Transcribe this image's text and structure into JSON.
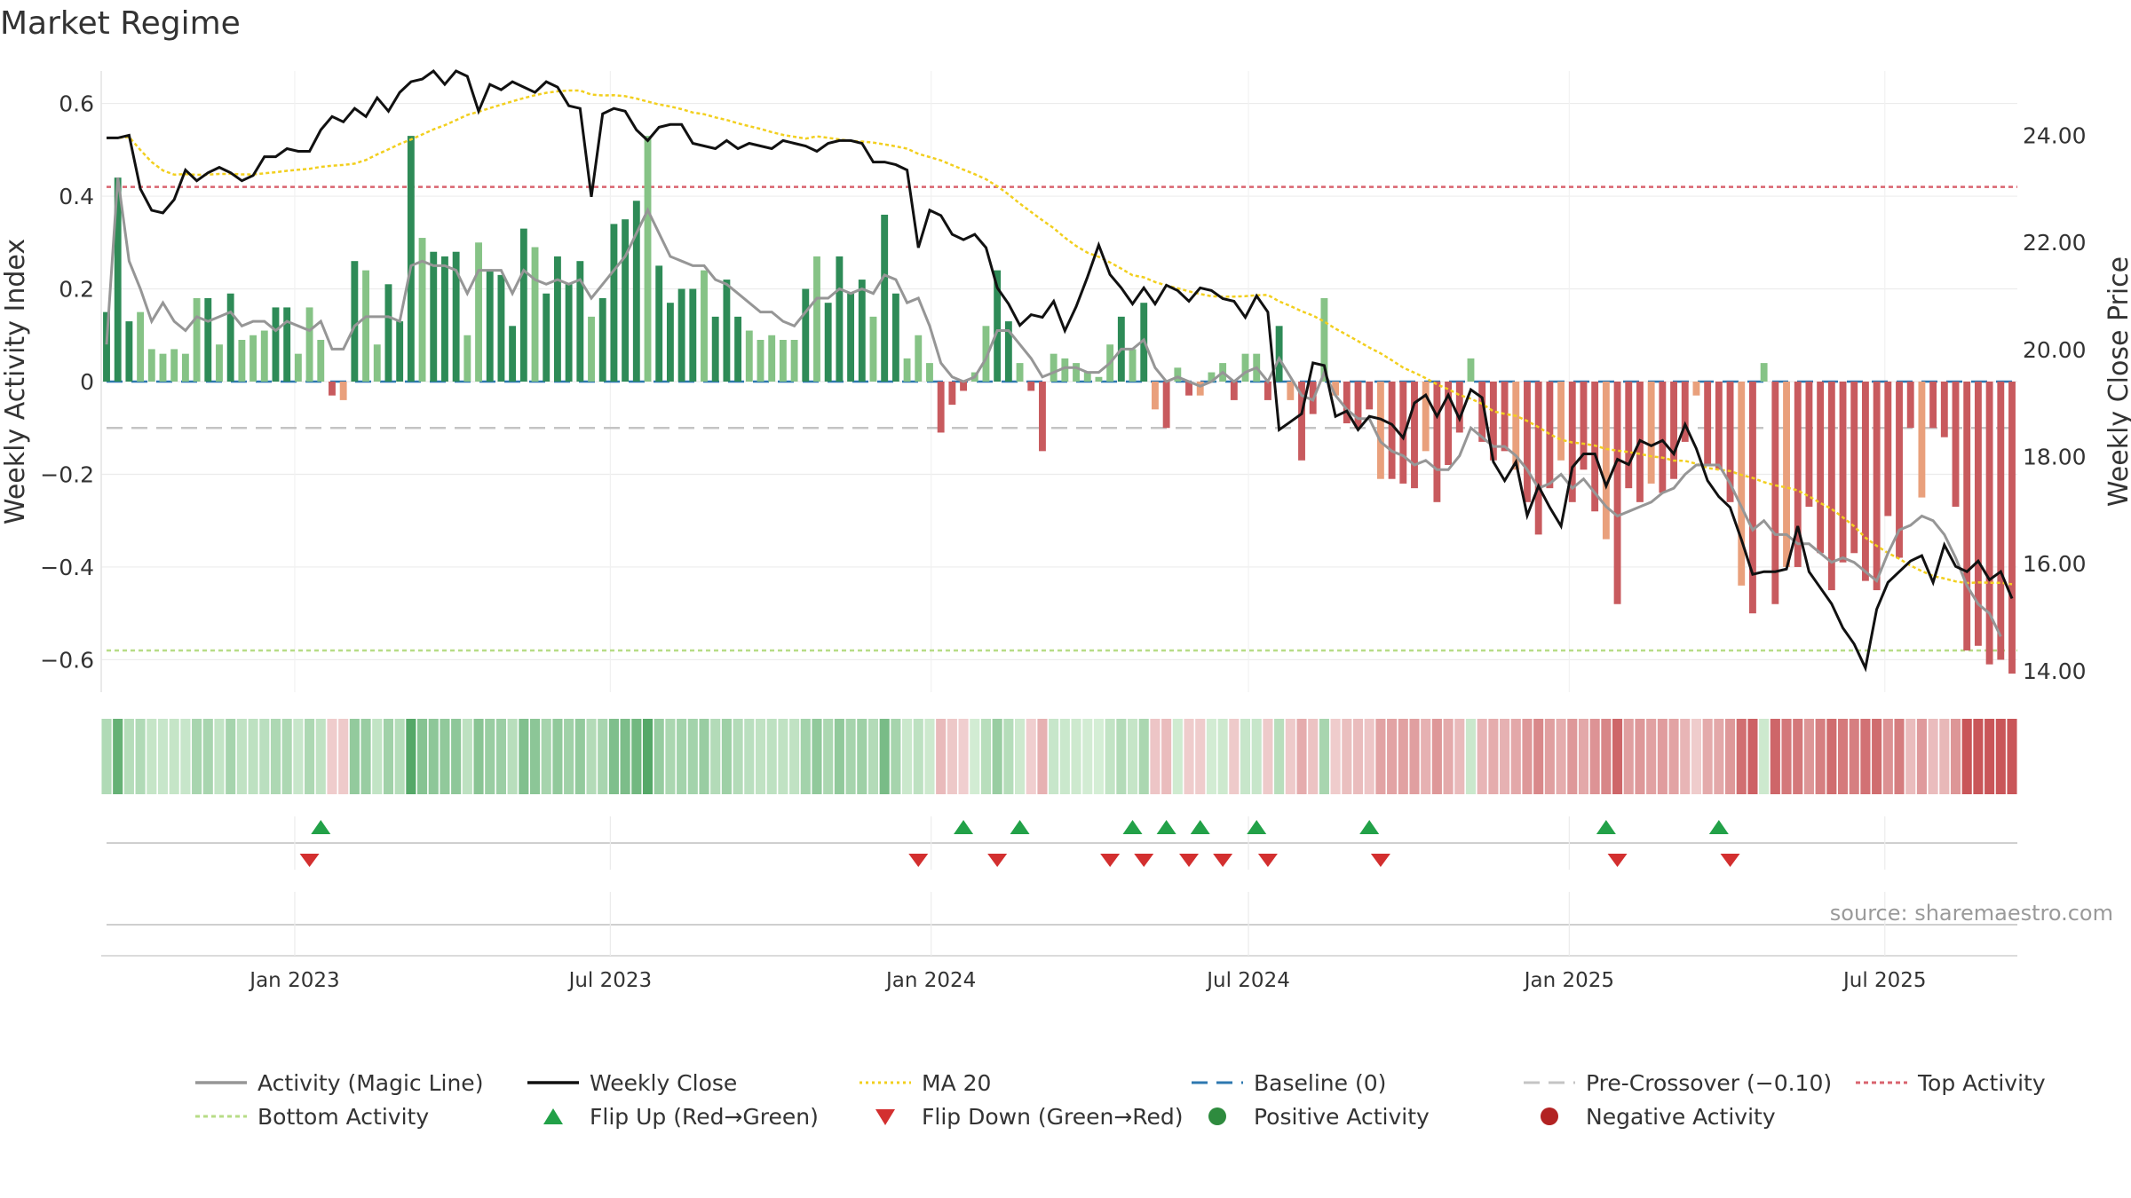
{
  "title": "Market Regime",
  "source": "source: sharemaestro.com",
  "colors": {
    "activity_line": "#969696",
    "weekly_close": "#111111",
    "ma20": "#f2cf1e",
    "baseline": "#2e78b0",
    "pre_crossover": "#c4c4c4",
    "top_activity": "#d9646f",
    "bottom_activity": "#b7dc86",
    "pos_dark": "#2e8b57",
    "pos_light": "#86c386",
    "neg_dark": "#c85a5e",
    "neg_light": "#e9a07c",
    "flip_up": "#22a148",
    "flip_down": "#d32f2f"
  },
  "chart_data": {
    "type": "bar+line",
    "title": "Market Regime",
    "ylabel_left": "Weekly Activity Index",
    "ylabel_right": "Weekly Close Price",
    "yticks_left": [
      "0.6",
      "0.4",
      "0.2",
      "0",
      "−0.2",
      "−0.4",
      "−0.6"
    ],
    "ylim_left": [
      -0.67,
      0.67
    ],
    "yticks_right": [
      "24.00",
      "22.00",
      "20.00",
      "18.00",
      "16.00",
      "14.00"
    ],
    "ylim_right": [
      13.6,
      25.2
    ],
    "x_start": "2022-09-12",
    "x_end": "2025-09-15",
    "xtick_labels": [
      {
        "date": "2023-01-01",
        "label": "Jan 2023"
      },
      {
        "date": "2023-07-01",
        "label": "Jul 2023"
      },
      {
        "date": "2024-01-01",
        "label": "Jan 2024"
      },
      {
        "date": "2024-07-01",
        "label": "Jul 2024"
      },
      {
        "date": "2025-01-01",
        "label": "Jan 2025"
      },
      {
        "date": "2025-07-01",
        "label": "Jul 2025"
      }
    ],
    "reference_lines": {
      "top_activity": 0.42,
      "bottom_activity": -0.58,
      "pre_crossover": -0.1,
      "baseline": 0
    },
    "activity_bars": [
      0.15,
      0.44,
      0.13,
      0.15,
      0.07,
      0.06,
      0.07,
      0.06,
      0.18,
      0.18,
      0.08,
      0.19,
      0.09,
      0.1,
      0.11,
      0.16,
      0.16,
      0.06,
      0.16,
      0.09,
      -0.03,
      -0.04,
      0.26,
      0.24,
      0.08,
      0.21,
      0.13,
      0.53,
      0.31,
      0.28,
      0.27,
      0.28,
      0.1,
      0.3,
      0.24,
      0.23,
      0.12,
      0.33,
      0.29,
      0.19,
      0.27,
      0.21,
      0.26,
      0.14,
      0.18,
      0.34,
      0.35,
      0.39,
      0.53,
      0.25,
      0.17,
      0.2,
      0.2,
      0.24,
      0.14,
      0.22,
      0.14,
      0.11,
      0.09,
      0.1,
      0.09,
      0.09,
      0.2,
      0.27,
      0.17,
      0.27,
      0.19,
      0.22,
      0.14,
      0.36,
      0.19,
      0.05,
      0.1,
      0.04,
      -0.11,
      -0.05,
      -0.02,
      0.02,
      0.12,
      0.24,
      0.13,
      0.04,
      -0.02,
      -0.15,
      0.06,
      0.05,
      0.04,
      0.02,
      0.01,
      0.08,
      0.14,
      0.07,
      0.17,
      -0.06,
      -0.1,
      0.03,
      -0.03,
      -0.03,
      0.02,
      0.04,
      -0.04,
      0.06,
      0.06,
      -0.04,
      0.12,
      -0.04,
      -0.17,
      -0.07,
      0.18,
      -0.03,
      -0.09,
      -0.1,
      -0.06,
      -0.21,
      -0.21,
      -0.22,
      -0.23,
      -0.15,
      -0.26,
      -0.18,
      -0.11,
      0.05,
      -0.13,
      -0.17,
      -0.15,
      -0.19,
      -0.26,
      -0.33,
      -0.23,
      -0.17,
      -0.26,
      -0.19,
      -0.28,
      -0.34,
      -0.48,
      -0.23,
      -0.26,
      -0.22,
      -0.24,
      -0.21,
      -0.13,
      -0.03,
      -0.18,
      -0.19,
      -0.26,
      -0.44,
      -0.5,
      0.04,
      -0.48,
      -0.4,
      -0.4,
      -0.27,
      -0.37,
      -0.45,
      -0.39,
      -0.37,
      -0.43,
      -0.45,
      -0.29,
      -0.38,
      -0.1,
      -0.25,
      -0.1,
      -0.12,
      -0.27,
      -0.58,
      -0.57,
      -0.61,
      -0.6,
      -0.63
    ],
    "activity_line": [
      0.08,
      0.44,
      0.26,
      0.2,
      0.13,
      0.17,
      0.13,
      0.11,
      0.14,
      0.13,
      0.14,
      0.15,
      0.12,
      0.13,
      0.13,
      0.11,
      0.13,
      0.12,
      0.11,
      0.13,
      0.07,
      0.07,
      0.12,
      0.14,
      0.14,
      0.14,
      0.13,
      0.25,
      0.26,
      0.25,
      0.25,
      0.24,
      0.19,
      0.24,
      0.24,
      0.24,
      0.19,
      0.24,
      0.22,
      0.21,
      0.22,
      0.21,
      0.22,
      0.18,
      0.21,
      0.24,
      0.27,
      0.32,
      0.37,
      0.32,
      0.27,
      0.26,
      0.25,
      0.25,
      0.22,
      0.21,
      0.19,
      0.17,
      0.15,
      0.15,
      0.13,
      0.12,
      0.15,
      0.18,
      0.18,
      0.2,
      0.19,
      0.2,
      0.19,
      0.23,
      0.22,
      0.17,
      0.18,
      0.12,
      0.04,
      0.01,
      0.0,
      0.01,
      0.05,
      0.11,
      0.11,
      0.08,
      0.05,
      0.01,
      0.02,
      0.03,
      0.03,
      0.02,
      0.02,
      0.04,
      0.07,
      0.07,
      0.09,
      0.03,
      0.0,
      0.01,
      0.0,
      -0.01,
      0.0,
      0.02,
      0.0,
      0.02,
      0.03,
      0.0,
      0.05,
      0.01,
      -0.03,
      -0.04,
      0.02,
      -0.03,
      -0.06,
      -0.08,
      -0.08,
      -0.13,
      -0.15,
      -0.16,
      -0.18,
      -0.17,
      -0.19,
      -0.19,
      -0.16,
      -0.1,
      -0.12,
      -0.14,
      -0.14,
      -0.16,
      -0.19,
      -0.23,
      -0.22,
      -0.2,
      -0.23,
      -0.21,
      -0.24,
      -0.27,
      -0.29,
      -0.28,
      -0.27,
      -0.26,
      -0.24,
      -0.23,
      -0.2,
      -0.18,
      -0.18,
      -0.18,
      -0.22,
      -0.27,
      -0.32,
      -0.3,
      -0.33,
      -0.33,
      -0.35,
      -0.35,
      -0.37,
      -0.39,
      -0.38,
      -0.39,
      -0.41,
      -0.43,
      -0.37,
      -0.32,
      -0.31,
      -0.29,
      -0.3,
      -0.33,
      -0.38,
      -0.44,
      -0.48,
      -0.5,
      -0.55
    ],
    "weekly_close": [
      23.95,
      23.95,
      24.0,
      23.0,
      22.6,
      22.55,
      22.8,
      23.35,
      23.15,
      23.3,
      23.4,
      23.3,
      23.15,
      23.25,
      23.6,
      23.6,
      23.75,
      23.7,
      23.7,
      24.1,
      24.35,
      24.25,
      24.5,
      24.35,
      24.7,
      24.45,
      24.8,
      25.0,
      25.05,
      25.2,
      24.95,
      25.2,
      25.1,
      24.45,
      24.95,
      24.85,
      25.0,
      24.9,
      24.8,
      25.0,
      24.9,
      24.55,
      24.5,
      22.85,
      24.4,
      24.5,
      24.45,
      24.1,
      23.9,
      24.15,
      24.2,
      24.2,
      23.85,
      23.8,
      23.75,
      23.9,
      23.75,
      23.85,
      23.8,
      23.75,
      23.9,
      23.85,
      23.8,
      23.7,
      23.85,
      23.9,
      23.9,
      23.85,
      23.5,
      23.5,
      23.45,
      23.35,
      21.9,
      22.6,
      22.5,
      22.15,
      22.05,
      22.15,
      21.9,
      21.15,
      20.85,
      20.45,
      20.65,
      20.6,
      20.9,
      20.35,
      20.8,
      21.35,
      21.95,
      21.4,
      21.15,
      20.85,
      21.15,
      20.85,
      21.2,
      21.1,
      20.9,
      21.15,
      21.1,
      20.95,
      20.9,
      20.6,
      21.0,
      20.7,
      18.5,
      18.65,
      18.8,
      19.75,
      19.7,
      18.75,
      18.85,
      18.5,
      18.75,
      18.7,
      18.6,
      18.35,
      19.0,
      19.15,
      18.75,
      19.15,
      18.7,
      19.25,
      19.1,
      17.9,
      17.55,
      17.9,
      16.9,
      17.45,
      17.05,
      16.7,
      17.8,
      18.05,
      18.05,
      17.45,
      17.95,
      17.85,
      18.3,
      18.2,
      18.3,
      18.05,
      18.6,
      18.15,
      17.55,
      17.25,
      17.05,
      16.45,
      15.8,
      15.85,
      15.85,
      15.9,
      16.7,
      15.85,
      15.55,
      15.25,
      14.8,
      14.5,
      14.05,
      15.15,
      15.65,
      15.85,
      16.05,
      16.15,
      15.65,
      16.35,
      15.95,
      15.85,
      16.05,
      15.7,
      15.85,
      15.35
    ]
  },
  "regime_strip": {
    "note": "per-week regime colours (shading strip under main chart)"
  },
  "flip_up_weeks": [
    19,
    76,
    81,
    91,
    94,
    97,
    102,
    112,
    133,
    143
  ],
  "flip_down_weeks": [
    18,
    72,
    79,
    89,
    92,
    96,
    99,
    103,
    113,
    134,
    144
  ],
  "legend": [
    {
      "label": "Activity (Magic Line)",
      "icon": "grey-line"
    },
    {
      "label": "Weekly Close",
      "icon": "black-line"
    },
    {
      "label": "MA 20",
      "icon": "yellow-dotted-line"
    },
    {
      "label": "Baseline (0)",
      "icon": "blue-dashed-line"
    },
    {
      "label": "Pre-Crossover (−0.10)",
      "icon": "grey-dashed-line"
    },
    {
      "label": "Top Activity",
      "icon": "red-dotted-line"
    },
    {
      "label": "Bottom Activity",
      "icon": "green-dotted-line"
    },
    {
      "label": "Flip Up (Red→Green)",
      "icon": "green-up-triangle"
    },
    {
      "label": "Flip Down (Green→Red)",
      "icon": "red-down-triangle"
    },
    {
      "label": "Positive Activity",
      "icon": "green-dot"
    },
    {
      "label": "Negative Activity",
      "icon": "red-dot"
    }
  ]
}
